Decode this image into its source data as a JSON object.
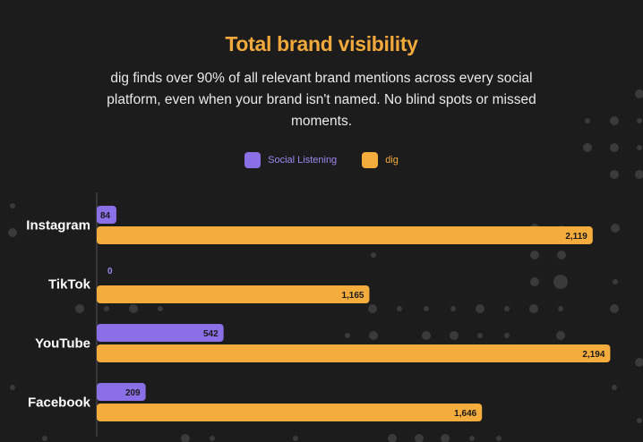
{
  "title": "Total brand visibility",
  "subtitle": "dig finds over 90% of all relevant brand mentions across every social platform, even when your brand isn't named. No blind spots or missed moments.",
  "colors": {
    "background": "#1c1c1c",
    "title": "#f2a93b",
    "social_listening": "#8b6fe6",
    "dig": "#f4ac3d",
    "bar_label": "#1a1a1a",
    "category_label": "#ffffff"
  },
  "legend": [
    {
      "name": "Social Listening",
      "color": "#8b6fe6",
      "text_color": "#9d88ef"
    },
    {
      "name": "dig",
      "color": "#f4ac3d",
      "text_color": "#f4ac3d"
    }
  ],
  "chart_data": {
    "type": "bar",
    "orientation": "horizontal",
    "categories": [
      "Instagram",
      "TikTok",
      "YouTube",
      "Facebook"
    ],
    "series": [
      {
        "name": "Social Listening",
        "values": [
          84,
          0,
          542,
          209
        ],
        "labels": [
          "84",
          "0",
          "542",
          "209"
        ]
      },
      {
        "name": "dig",
        "values": [
          2119,
          1165,
          2194,
          1646
        ],
        "labels": [
          "2,119",
          "1,165",
          "2,194",
          "1,646"
        ]
      }
    ],
    "xlim": [
      0,
      2200
    ],
    "legend_position": "top-center",
    "grid": false
  }
}
